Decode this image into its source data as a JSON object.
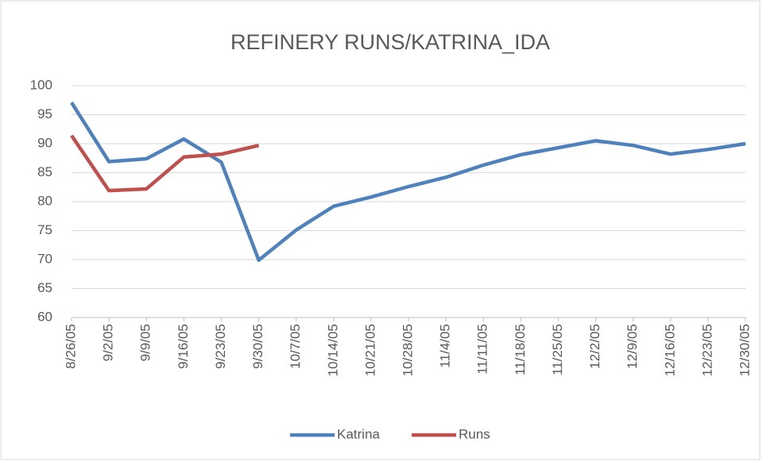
{
  "chart_data": {
    "type": "line",
    "title": "REFINERY RUNS/KATRINA_IDA",
    "categories": [
      "8/26/05",
      "9/2/05",
      "9/9/05",
      "9/16/05",
      "9/23/05",
      "9/30/05",
      "10/7/05",
      "10/14/05",
      "10/21/05",
      "10/28/05",
      "11/4/05",
      "11/11/05",
      "11/18/05",
      "11/25/05",
      "12/2/05",
      "12/9/05",
      "12/16/05",
      "12/23/05",
      "12/30/05"
    ],
    "series": [
      {
        "name": "Katrina",
        "color": "#4f81bd",
        "values": [
          97.1,
          86.9,
          87.4,
          90.8,
          86.8,
          69.9,
          75.1,
          79.2,
          80.8,
          82.6,
          84.2,
          86.3,
          88.1,
          89.3,
          90.5,
          89.7,
          88.2,
          89.0,
          90.0
        ]
      },
      {
        "name": "Runs",
        "color": "#c0504d",
        "values": [
          91.4,
          81.9,
          82.2,
          87.7,
          88.2,
          89.7,
          null,
          null,
          null,
          null,
          null,
          null,
          null,
          null,
          null,
          null,
          null,
          null,
          null
        ]
      }
    ],
    "ylim": [
      60,
      100
    ],
    "yticks": [
      60,
      65,
      70,
      75,
      80,
      85,
      90,
      95,
      100
    ],
    "grid": true,
    "legend": "bottom"
  }
}
